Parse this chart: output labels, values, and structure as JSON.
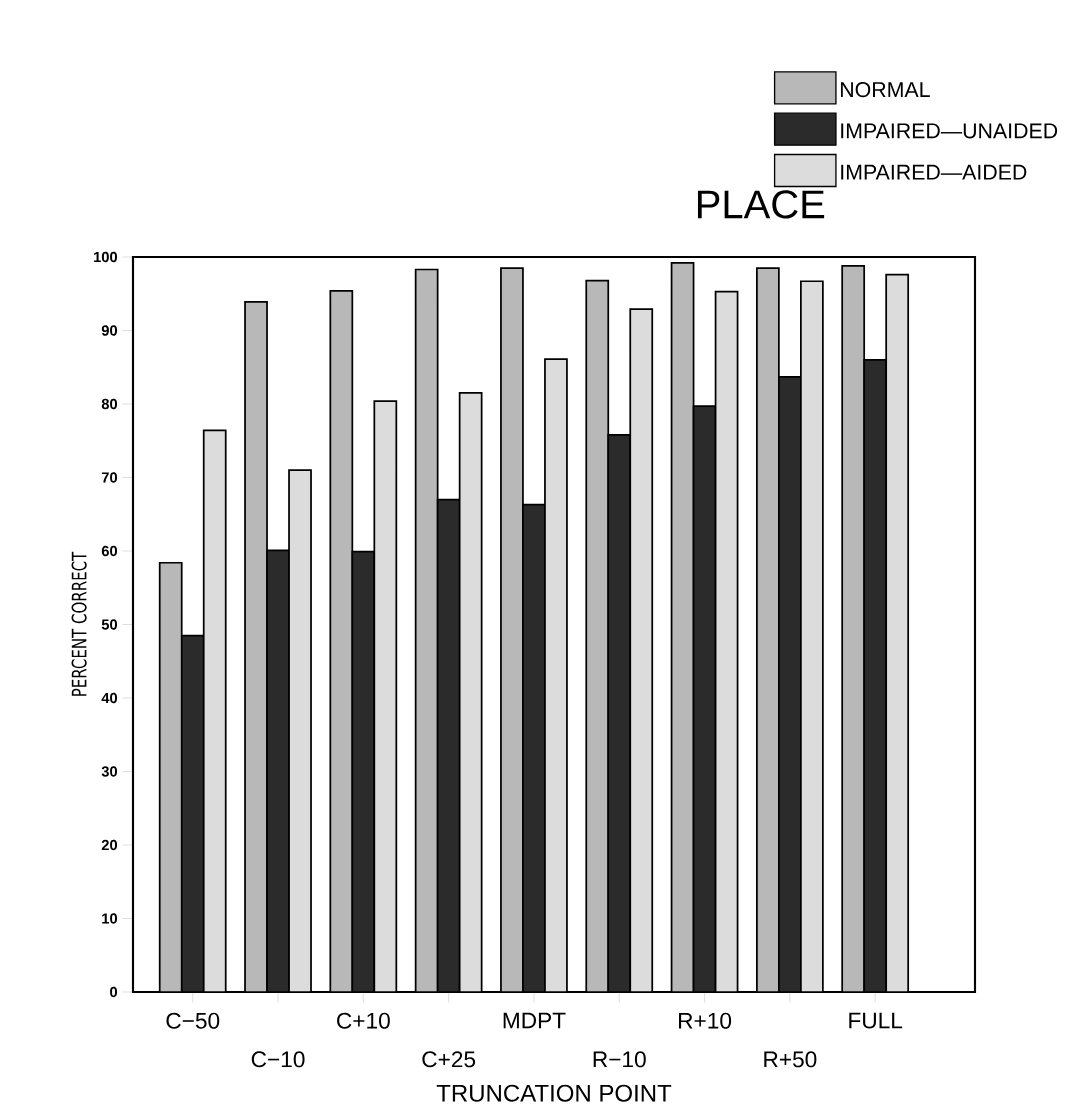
{
  "chart_data": {
    "type": "bar",
    "title": "PLACE",
    "xlabel": "TRUNCATION POINT",
    "ylabel": "PERCENT CORRECT",
    "categories": [
      "C−50",
      "C−10",
      "C+10",
      "C+25",
      "MDPT",
      "R−10",
      "R+10",
      "R+50",
      "FULL"
    ],
    "series": [
      {
        "name": "NORMAL",
        "color": "#b8b8b8",
        "values": [
          58.4,
          93.9,
          95.4,
          98.3,
          98.5,
          96.8,
          99.2,
          98.5,
          98.8
        ]
      },
      {
        "name": "IMPAIRED—UNAIDED",
        "color": "#2b2b2b",
        "values": [
          48.5,
          60.1,
          59.9,
          67.0,
          66.3,
          75.8,
          79.7,
          83.7,
          86.0
        ]
      },
      {
        "name": "IMPAIRED—AIDED",
        "color": "#dcdcdc",
        "values": [
          76.4,
          71.0,
          80.4,
          81.5,
          86.1,
          92.9,
          95.3,
          96.7,
          97.6
        ]
      }
    ],
    "ylim": [
      0,
      100
    ],
    "yticks": [
      0,
      10,
      20,
      30,
      40,
      50,
      60,
      70,
      80,
      90,
      100
    ],
    "legend": "top right",
    "grid": false
  }
}
